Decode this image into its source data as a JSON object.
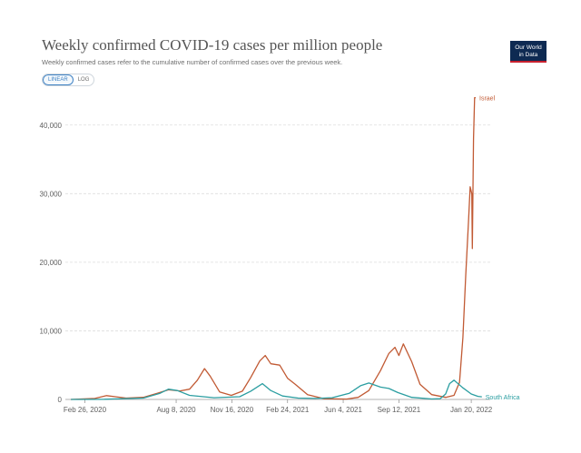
{
  "header": {
    "title": "Weekly confirmed COVID-19 cases per million people",
    "subtitle": "Weekly confirmed cases refer to the cumulative number of confirmed cases over the previous week.",
    "logo_line1": "Our World",
    "logo_line2": "in Data"
  },
  "controls": {
    "linear_label": "LINEAR",
    "log_label": "LOG",
    "selected": "LINEAR"
  },
  "colors": {
    "israel": "#c15a34",
    "south_africa": "#2b9ea1",
    "grid": "#dddddd",
    "logo_bg": "#0e2a52",
    "logo_accent": "#c8202f"
  },
  "chart_data": {
    "type": "line",
    "title": "Weekly confirmed COVID-19 cases per million people",
    "subtitle": "Weekly confirmed cases refer to the cumulative number of confirmed cases over the previous week.",
    "xlabel": "",
    "ylabel": "",
    "x_range": [
      "2020-01-22",
      "2022-02-10"
    ],
    "ylim": [
      0,
      45000
    ],
    "y_ticks": [
      0,
      10000,
      20000,
      30000,
      40000
    ],
    "y_tick_labels": [
      "0",
      "10,000",
      "20,000",
      "30,000",
      "40,000"
    ],
    "x_ticks": [
      "2020-02-26",
      "2020-08-08",
      "2020-11-16",
      "2021-02-24",
      "2021-06-04",
      "2021-09-12",
      "2022-01-20"
    ],
    "x_tick_labels": [
      "Feb 26, 2020",
      "Aug 8, 2020",
      "Nov 16, 2020",
      "Feb 24, 2021",
      "Jun 4, 2021",
      "Sep 12, 2021",
      "Jan 20, 2022"
    ],
    "grid": true,
    "legend": "inline labels at line ends",
    "series": [
      {
        "name": "Israel",
        "x": [
          "2020-02-01",
          "2020-03-15",
          "2020-04-05",
          "2020-05-10",
          "2020-06-10",
          "2020-07-05",
          "2020-07-25",
          "2020-08-15",
          "2020-09-01",
          "2020-09-15",
          "2020-09-28",
          "2020-10-08",
          "2020-10-25",
          "2020-11-15",
          "2020-12-05",
          "2020-12-20",
          "2021-01-05",
          "2021-01-15",
          "2021-01-25",
          "2021-02-10",
          "2021-02-24",
          "2021-03-10",
          "2021-04-01",
          "2021-05-01",
          "2021-06-10",
          "2021-07-01",
          "2021-07-20",
          "2021-08-10",
          "2021-08-25",
          "2021-09-05",
          "2021-09-12",
          "2021-09-20",
          "2021-10-05",
          "2021-10-20",
          "2021-11-10",
          "2021-12-05",
          "2021-12-20",
          "2021-12-30",
          "2022-01-05",
          "2022-01-10",
          "2022-01-15",
          "2022-01-18",
          "2022-01-21",
          "2022-01-22",
          "2022-01-24",
          "2022-01-26",
          "2022-01-28"
        ],
        "y": [
          0,
          150,
          550,
          200,
          300,
          900,
          1400,
          1250,
          1500,
          2800,
          4500,
          3400,
          1100,
          600,
          1200,
          3200,
          5600,
          6400,
          5200,
          5000,
          3100,
          2200,
          700,
          100,
          50,
          300,
          1300,
          4200,
          6700,
          7600,
          6400,
          8100,
          5500,
          2200,
          700,
          300,
          600,
          2500,
          9000,
          18000,
          26000,
          31000,
          30000,
          22000,
          38000,
          44000,
          44000
        ]
      },
      {
        "name": "South Africa",
        "x": [
          "2020-02-01",
          "2020-04-01",
          "2020-06-10",
          "2020-07-10",
          "2020-07-25",
          "2020-08-10",
          "2020-09-01",
          "2020-10-15",
          "2020-11-30",
          "2020-12-20",
          "2021-01-10",
          "2021-01-25",
          "2021-02-15",
          "2021-03-15",
          "2021-04-15",
          "2021-05-15",
          "2021-06-15",
          "2021-07-05",
          "2021-07-20",
          "2021-08-10",
          "2021-08-25",
          "2021-09-10",
          "2021-10-05",
          "2021-11-10",
          "2021-11-25",
          "2021-12-05",
          "2021-12-12",
          "2021-12-20",
          "2022-01-05",
          "2022-01-20",
          "2022-02-01",
          "2022-02-08"
        ],
        "y": [
          0,
          30,
          200,
          900,
          1500,
          1300,
          600,
          250,
          400,
          1200,
          2300,
          1300,
          500,
          200,
          150,
          250,
          900,
          2000,
          2400,
          1800,
          1600,
          1000,
          300,
          60,
          100,
          800,
          2300,
          2800,
          1700,
          800,
          450,
          380
        ]
      }
    ]
  }
}
